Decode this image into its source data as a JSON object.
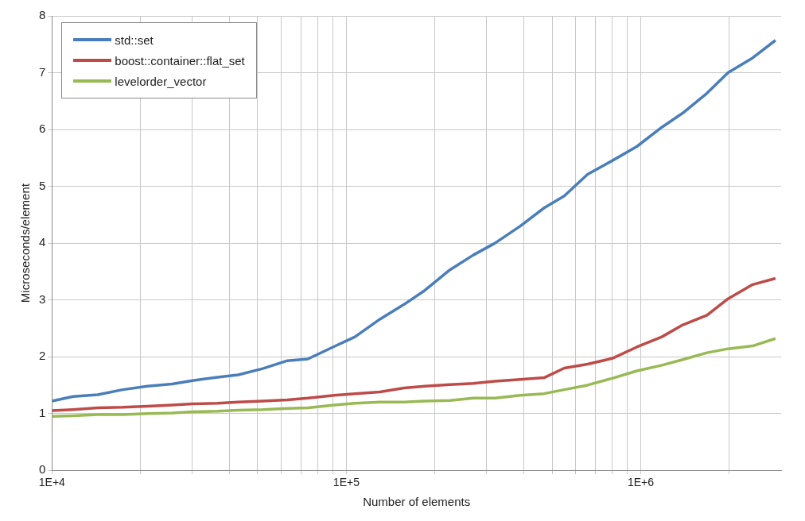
{
  "chart_data": {
    "type": "line",
    "xlabel": "Number of elements",
    "ylabel": "Microseconds/element",
    "x": [
      10000,
      11800,
      14300,
      17400,
      21100,
      25600,
      30000,
      36500,
      42900,
      52000,
      63000,
      74000,
      91000,
      107000,
      130000,
      157000,
      185000,
      225000,
      270000,
      320000,
      390000,
      470000,
      550000,
      660000,
      800000,
      970000,
      1180000,
      1390000,
      1680000,
      1980000,
      2400000,
      2870000
    ],
    "series": [
      {
        "name": "std::set",
        "color": "#4a7ebb",
        "values": [
          1.22,
          1.3,
          1.33,
          1.42,
          1.48,
          1.52,
          1.58,
          1.64,
          1.68,
          1.79,
          1.93,
          1.96,
          2.18,
          2.35,
          2.66,
          2.92,
          3.17,
          3.53,
          3.79,
          4.0,
          4.3,
          4.62,
          4.83,
          5.21,
          5.45,
          5.7,
          6.04,
          6.29,
          6.64,
          7.0,
          7.26,
          7.57
        ]
      },
      {
        "name": "boost::container::flat_set",
        "color": "#be4b48",
        "values": [
          1.05,
          1.07,
          1.1,
          1.11,
          1.13,
          1.15,
          1.17,
          1.18,
          1.2,
          1.22,
          1.24,
          1.27,
          1.32,
          1.35,
          1.38,
          1.45,
          1.48,
          1.51,
          1.53,
          1.57,
          1.6,
          1.63,
          1.8,
          1.87,
          1.97,
          2.17,
          2.35,
          2.56,
          2.73,
          3.02,
          3.27,
          3.38
        ]
      },
      {
        "name": "levelorder_vector",
        "color": "#98b954",
        "values": [
          0.95,
          0.96,
          0.98,
          0.98,
          1.0,
          1.01,
          1.03,
          1.04,
          1.06,
          1.07,
          1.09,
          1.1,
          1.15,
          1.18,
          1.2,
          1.2,
          1.22,
          1.23,
          1.27,
          1.27,
          1.32,
          1.35,
          1.42,
          1.5,
          1.62,
          1.75,
          1.85,
          1.95,
          2.07,
          2.14,
          2.19,
          2.32
        ]
      }
    ],
    "log": "x",
    "xlim": [
      10000,
      3000000
    ],
    "xticks": [
      {
        "value": 10000,
        "label": "1E+4"
      },
      {
        "value": 20000,
        "label": null
      },
      {
        "value": 30000,
        "label": null
      },
      {
        "value": 40000,
        "label": null
      },
      {
        "value": 50000,
        "label": null
      },
      {
        "value": 60000,
        "label": null
      },
      {
        "value": 70000,
        "label": null
      },
      {
        "value": 80000,
        "label": null
      },
      {
        "value": 90000,
        "label": null
      },
      {
        "value": 100000,
        "label": "1E+5"
      },
      {
        "value": 200000,
        "label": null
      },
      {
        "value": 300000,
        "label": null
      },
      {
        "value": 400000,
        "label": null
      },
      {
        "value": 500000,
        "label": null
      },
      {
        "value": 600000,
        "label": null
      },
      {
        "value": 700000,
        "label": null
      },
      {
        "value": 800000,
        "label": null
      },
      {
        "value": 900000,
        "label": null
      },
      {
        "value": 1000000,
        "label": "1E+6"
      },
      {
        "value": 2000000,
        "label": null
      }
    ],
    "ylim": [
      0,
      8
    ],
    "yticks": [
      0,
      1,
      2,
      3,
      4,
      5,
      6,
      7,
      8
    ],
    "grid": true,
    "legend": "top left",
    "marker": "none",
    "line_style": "solid"
  }
}
